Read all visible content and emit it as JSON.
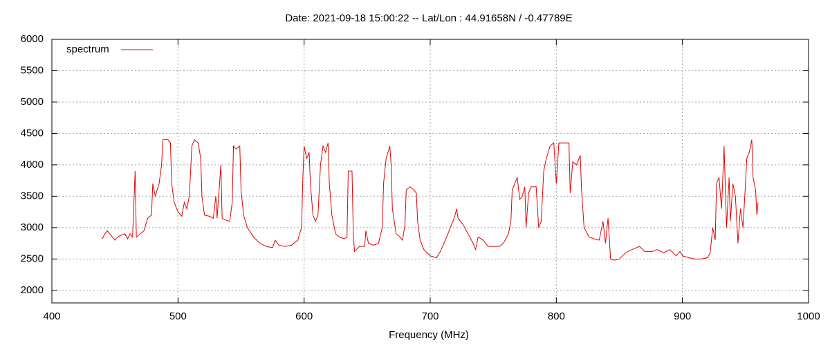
{
  "chart_data": {
    "type": "line",
    "title": "Date: 2021-09-18 15:00:22  --  Lat/Lon : 44.91658N / -0.47789E",
    "xlabel": "Frequency (MHz)",
    "xlim": [
      400,
      1000
    ],
    "xticks": [
      400,
      500,
      600,
      700,
      800,
      900,
      1000
    ],
    "ylim": [
      1800,
      6000
    ],
    "yticks": [
      2000,
      2500,
      3000,
      3500,
      4000,
      4500,
      5000,
      5500,
      6000
    ],
    "grid": true,
    "legend": "upper left",
    "x": [
      440,
      442,
      444,
      446,
      448,
      450,
      452,
      455,
      458,
      460,
      462,
      464,
      466,
      467,
      470,
      473,
      476,
      479,
      480,
      482,
      485,
      487,
      488,
      492,
      494,
      495,
      497,
      500,
      503,
      505,
      507,
      509,
      511,
      513,
      516,
      518,
      519,
      521,
      525,
      528,
      530,
      531,
      534,
      535,
      538,
      541,
      543,
      544,
      546,
      549,
      550,
      552,
      555,
      560,
      565,
      570,
      575,
      577,
      580,
      585,
      590,
      595,
      598,
      599,
      600,
      602,
      604,
      605,
      607,
      609,
      611,
      613,
      615,
      617,
      619,
      620,
      622,
      625,
      628,
      632,
      634,
      635,
      638,
      639,
      640,
      644,
      648,
      649,
      651,
      655,
      659,
      662,
      663,
      665,
      668,
      669,
      670,
      673,
      676,
      678,
      680,
      681,
      684,
      687,
      689,
      690,
      692,
      695,
      700,
      705,
      708,
      712,
      716,
      719,
      721,
      722,
      726,
      730,
      734,
      736,
      738,
      742,
      746,
      750,
      755,
      758,
      762,
      764,
      765,
      767,
      769,
      771,
      773,
      775,
      776,
      778,
      780,
      784,
      786,
      788,
      790,
      792,
      795,
      798,
      800,
      802,
      806,
      810,
      811,
      813,
      816,
      819,
      820,
      822,
      826,
      830,
      834,
      837,
      839,
      841,
      843,
      846,
      850,
      855,
      860,
      866,
      870,
      876,
      880,
      885,
      890,
      895,
      898,
      900,
      905,
      910,
      915,
      920,
      922,
      924,
      926,
      927,
      929,
      931,
      933,
      935,
      937,
      938,
      940,
      942,
      944,
      946,
      948,
      950,
      951,
      953,
      955,
      956,
      958,
      959,
      960
    ],
    "series": [
      {
        "name": "spectrum",
        "color": "#e00000",
        "values": [
          2820,
          2900,
          2950,
          2900,
          2850,
          2800,
          2850,
          2880,
          2900,
          2820,
          2900,
          2850,
          3900,
          2850,
          2900,
          2950,
          3150,
          3200,
          3700,
          3500,
          3700,
          4000,
          4400,
          4400,
          4350,
          3700,
          3400,
          3250,
          3180,
          3400,
          3300,
          3500,
          4300,
          4400,
          4350,
          4100,
          3500,
          3200,
          3180,
          3150,
          3500,
          3150,
          4000,
          3150,
          3120,
          3100,
          3400,
          4300,
          4250,
          4300,
          3600,
          3200,
          3000,
          2850,
          2750,
          2700,
          2680,
          2800,
          2720,
          2700,
          2720,
          2800,
          3000,
          3800,
          4300,
          4100,
          4200,
          3700,
          3200,
          3100,
          3200,
          4000,
          4300,
          4200,
          4350,
          3700,
          3200,
          2900,
          2850,
          2820,
          2850,
          3900,
          3900,
          2900,
          2620,
          2700,
          2700,
          2950,
          2750,
          2720,
          2750,
          3000,
          3700,
          4100,
          4300,
          4000,
          3300,
          2900,
          2850,
          2800,
          3050,
          3600,
          3650,
          3600,
          3550,
          3100,
          2800,
          2650,
          2550,
          2520,
          2620,
          2800,
          3000,
          3150,
          3300,
          3150,
          3050,
          2900,
          2750,
          2650,
          2850,
          2800,
          2700,
          2700,
          2700,
          2750,
          2900,
          3100,
          3600,
          3700,
          3800,
          3450,
          3500,
          3650,
          3000,
          3550,
          3650,
          3650,
          3000,
          3100,
          3900,
          4100,
          4300,
          4350,
          3700,
          4350,
          4350,
          4350,
          3550,
          4050,
          4000,
          4150,
          3600,
          3000,
          2850,
          2820,
          2800,
          3100,
          2750,
          3150,
          2500,
          2480,
          2500,
          2600,
          2650,
          2700,
          2620,
          2620,
          2650,
          2600,
          2650,
          2550,
          2620,
          2550,
          2520,
          2500,
          2500,
          2520,
          2600,
          3000,
          2800,
          3700,
          3800,
          3300,
          4300,
          3000,
          3800,
          3100,
          3700,
          3500,
          2750,
          3300,
          3000,
          3700,
          4100,
          4200,
          4400,
          3800,
          3600,
          3200,
          3400
        ]
      }
    ]
  }
}
